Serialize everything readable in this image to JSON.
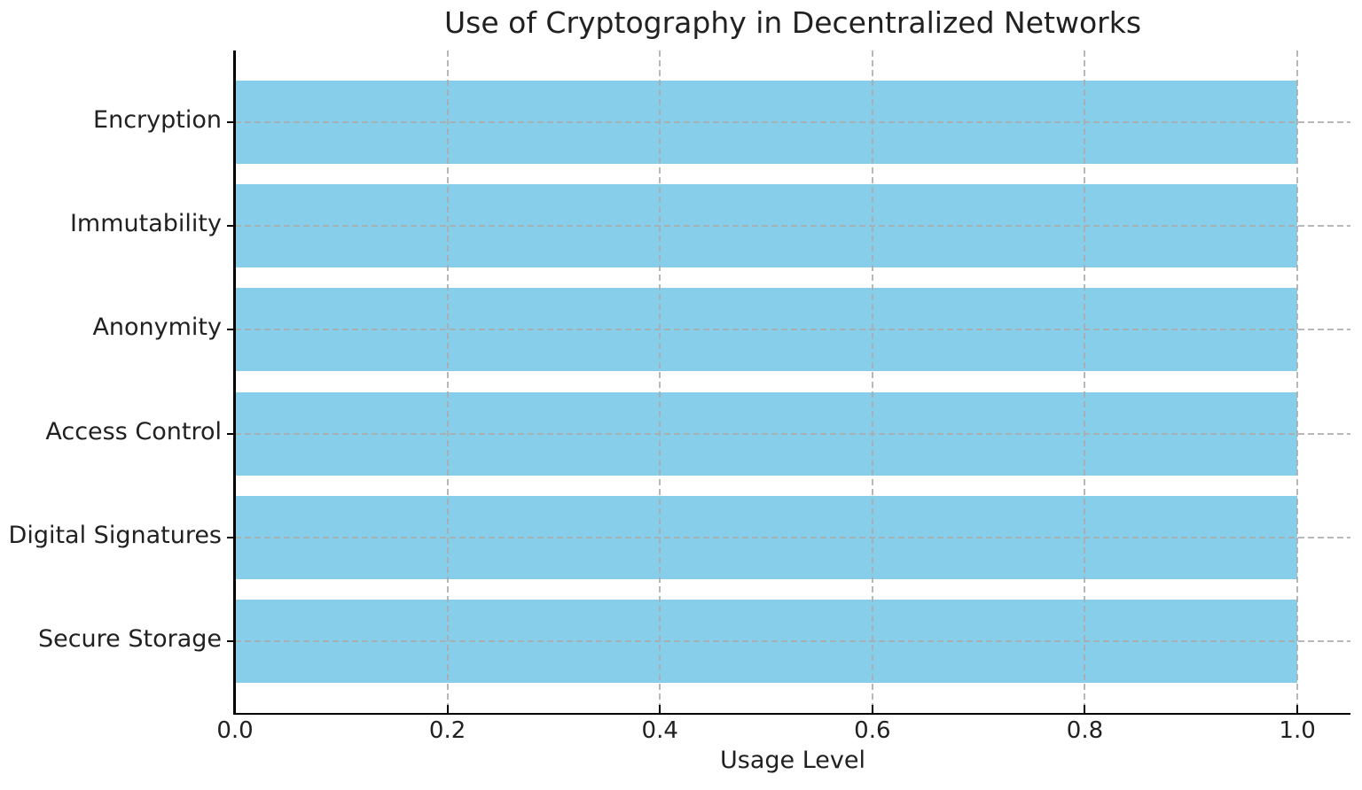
{
  "chart_data": {
    "type": "bar",
    "orientation": "horizontal",
    "title": "Use of Cryptography in Decentralized Networks",
    "xlabel": "Usage Level",
    "ylabel": "",
    "categories": [
      "Encryption",
      "Immutability",
      "Anonymity",
      "Access Control",
      "Digital Signatures",
      "Secure Storage"
    ],
    "values": [
      1.0,
      1.0,
      1.0,
      1.0,
      1.0,
      1.0
    ],
    "xlim": [
      0,
      1.05
    ],
    "xticks": [
      0.0,
      0.2,
      0.4,
      0.6,
      0.8,
      1.0
    ],
    "xtick_labels": [
      "0.0",
      "0.2",
      "0.4",
      "0.6",
      "0.8",
      "1.0"
    ],
    "bar_color": "#87CEEB",
    "grid": true,
    "grid_style": "dashed",
    "grid_color": "#acacac",
    "axis_color": "#000000",
    "text_color": "#212121",
    "legend_position": "none",
    "background_color": "#ffffff"
  }
}
